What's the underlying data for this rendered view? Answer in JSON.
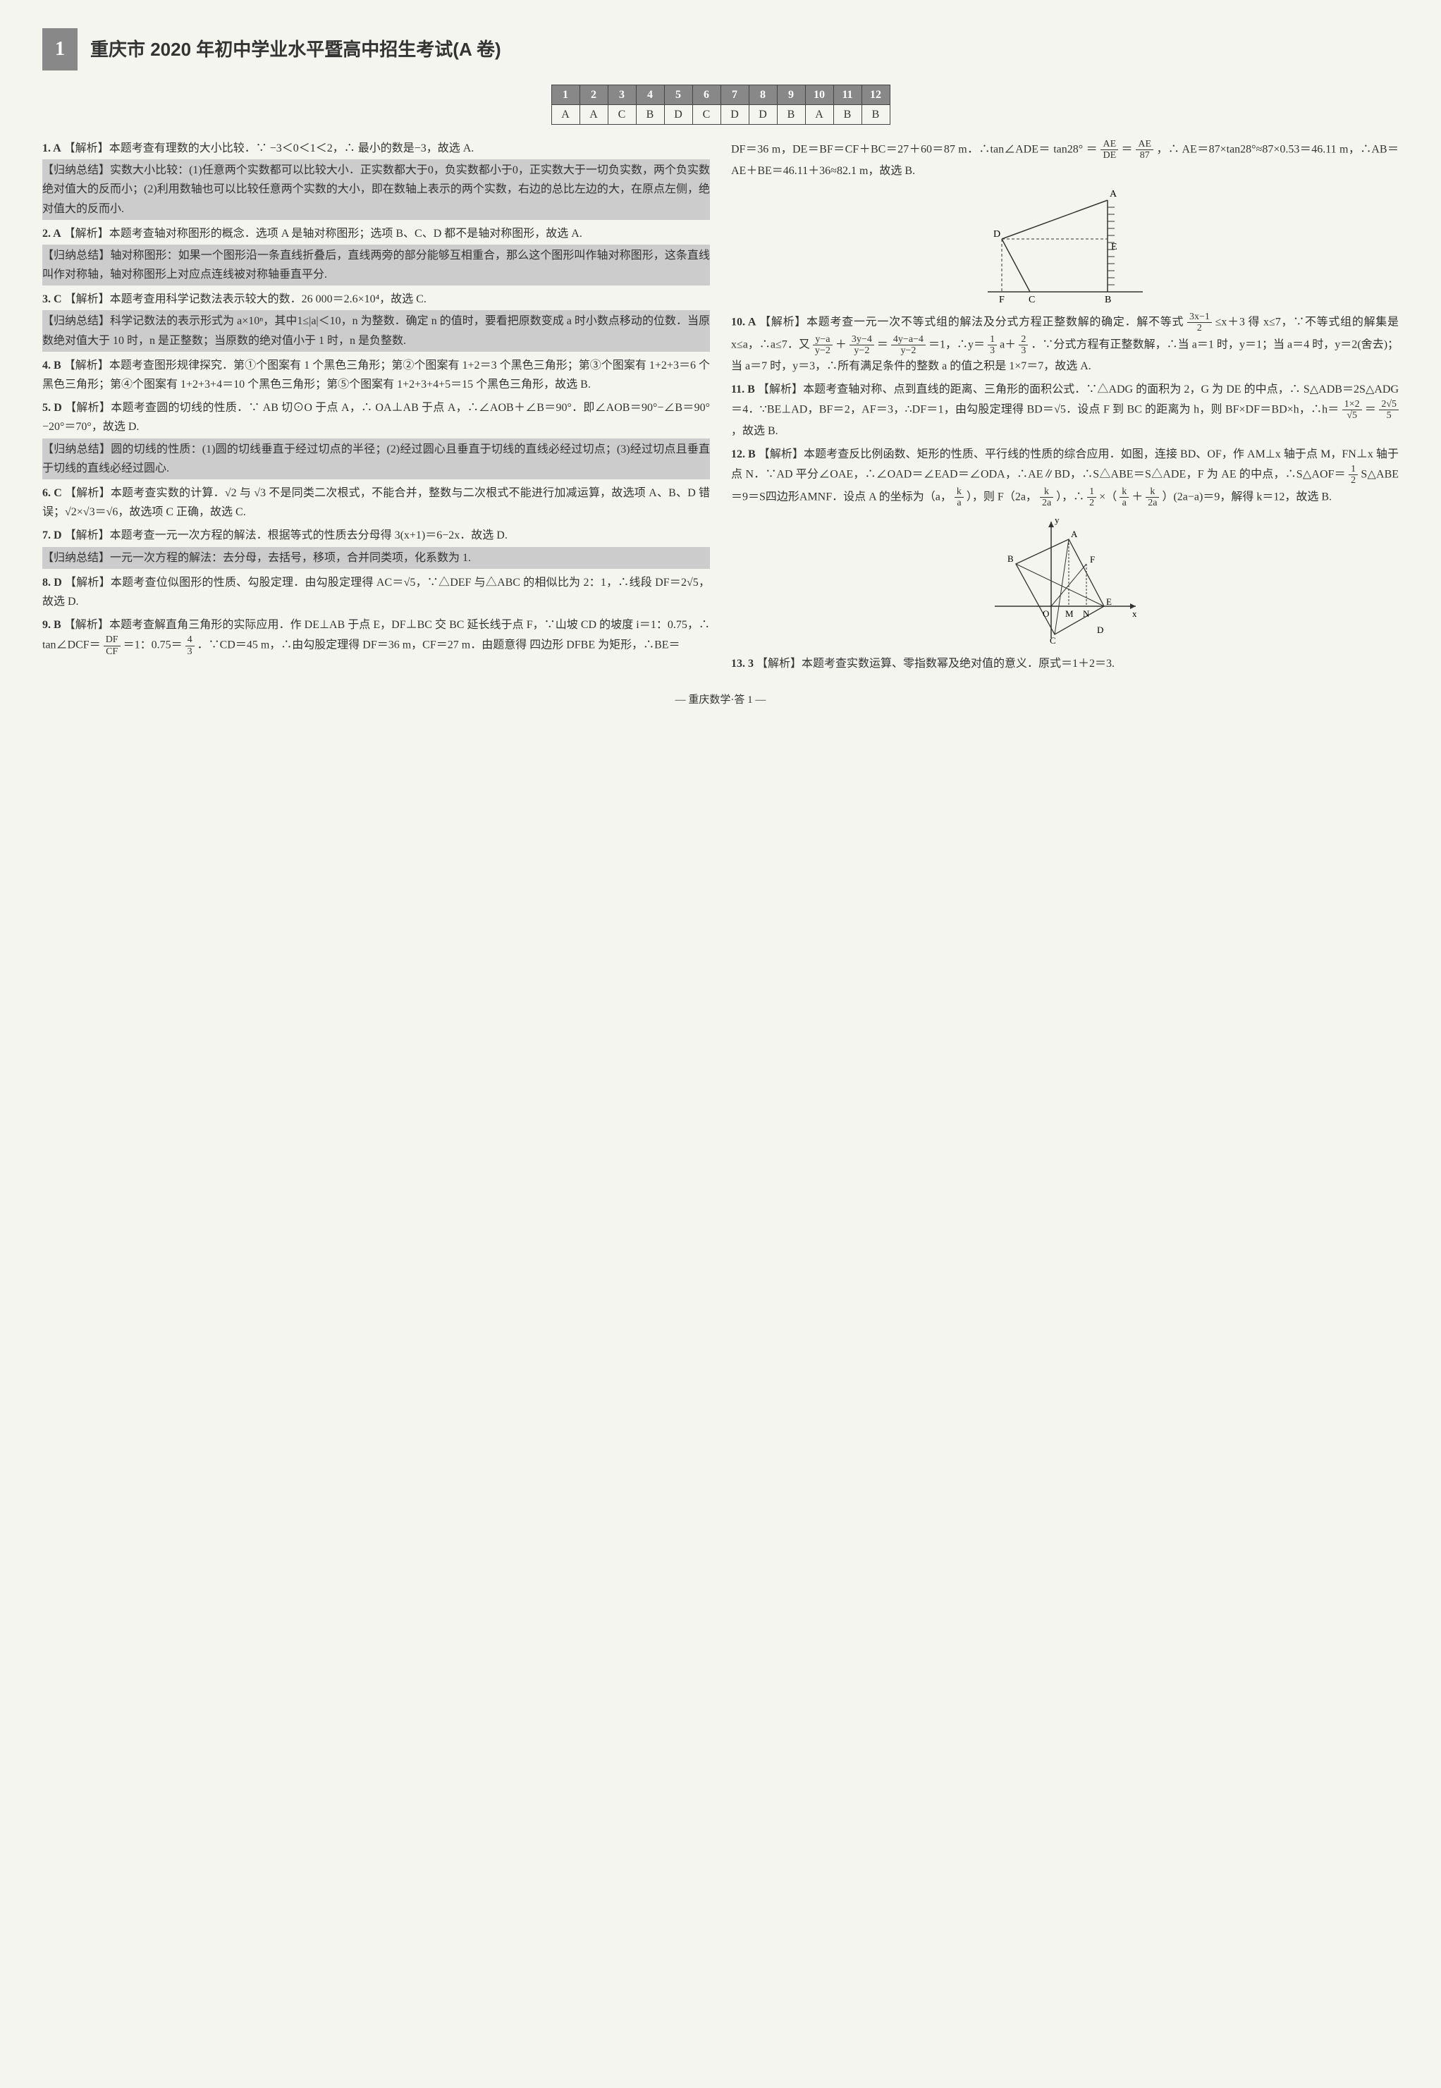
{
  "header": {
    "number": "1",
    "title": "重庆市 2020 年初中学业水平暨高中招生考试(A 卷)"
  },
  "answerTable": {
    "headers": [
      "1",
      "2",
      "3",
      "4",
      "5",
      "6",
      "7",
      "8",
      "9",
      "10",
      "11",
      "12"
    ],
    "answers": [
      "A",
      "A",
      "C",
      "B",
      "D",
      "C",
      "D",
      "D",
      "B",
      "A",
      "B",
      "B"
    ]
  },
  "leftCol": {
    "q1": {
      "num": "1. A",
      "label": "【解析】",
      "text": "本题考查有理数的大小比较．∵ −3＜0＜1＜2，∴ 最小的数是−3，故选 A.",
      "summaryLabel": "【归纳总结】",
      "summary": "实数大小比较：(1)任意两个实数都可以比较大小．正实数都大于0，负实数都小于0，正实数大于一切负实数，两个负实数绝对值大的反而小；(2)利用数轴也可以比较任意两个实数的大小，即在数轴上表示的两个实数，右边的总比左边的大，在原点左侧，绝对值大的反而小."
    },
    "q2": {
      "num": "2. A",
      "label": "【解析】",
      "text": "本题考查轴对称图形的概念．选项 A 是轴对称图形；选项 B、C、D 都不是轴对称图形，故选 A.",
      "summaryLabel": "【归纳总结】",
      "summary": "轴对称图形：如果一个图形沿一条直线折叠后，直线两旁的部分能够互相重合，那么这个图形叫作轴对称图形，这条直线叫作对称轴，轴对称图形上对应点连线被对称轴垂直平分."
    },
    "q3": {
      "num": "3. C",
      "label": "【解析】",
      "text": "本题考查用科学记数法表示较大的数．26 000＝2.6×10⁴，故选 C.",
      "summaryLabel": "【归纳总结】",
      "summary": "科学记数法的表示形式为 a×10ⁿ，其中1≤|a|＜10，n 为整数．确定 n 的值时，要看把原数变成 a 时小数点移动的位数．当原数绝对值大于 10 时，n 是正整数；当原数的绝对值小于 1 时，n 是负整数."
    },
    "q4": {
      "num": "4. B",
      "label": "【解析】",
      "text": "本题考查图形规律探究．第①个图案有 1 个黑色三角形；第②个图案有 1+2＝3 个黑色三角形；第③个图案有 1+2+3＝6 个黑色三角形；第④个图案有 1+2+3+4＝10 个黑色三角形；第⑤个图案有 1+2+3+4+5＝15 个黑色三角形，故选 B."
    },
    "q5": {
      "num": "5. D",
      "label": "【解析】",
      "text": "本题考查圆的切线的性质．∵ AB 切⊙O 于点 A，∴ OA⊥AB 于点 A，∴∠AOB＋∠B＝90°．即∠AOB＝90°−∠B＝90°−20°＝70°，故选 D.",
      "summaryLabel": "【归纳总结】",
      "summary": "圆的切线的性质：(1)圆的切线垂直于经过切点的半径；(2)经过圆心且垂直于切线的直线必经过切点；(3)经过切点且垂直于切线的直线必经过圆心."
    },
    "q6": {
      "num": "6. C",
      "label": "【解析】",
      "text": "本题考查实数的计算．√2 与 √3 不是同类二次根式，不能合并，整数与二次根式不能进行加减运算，故选项 A、B、D 错误；√2×√3＝√6，故选项 C 正确，故选 C."
    },
    "q7": {
      "num": "7. D",
      "label": "【解析】",
      "text": "本题考查一元一次方程的解法．根据等式的性质去分母得 3(x+1)＝6−2x．故选 D.",
      "summaryLabel": "【归纳总结】",
      "summary": "一元一次方程的解法：去分母，去括号，移项，合并同类项，化系数为 1."
    },
    "q8": {
      "num": "8. D",
      "label": "【解析】",
      "text": "本题考查位似图形的性质、勾股定理．由勾股定理得 AC＝√5，∵△DEF 与△ABC 的相似比为 2：1，∴线段 DF＝2√5，故选 D."
    },
    "q9": {
      "num": "9. B",
      "label": "【解析】",
      "text1": "本题考查解直角三角形的实际应用．作 DE⊥AB 于点 E，DF⊥BC 交 BC 延长线于点 F，∵山坡 CD 的坡度 i＝1：0.75，∴ tan∠DCF＝",
      "fracTop1": "DF",
      "fracBot1": "CF",
      "text2": "＝1：0.75＝",
      "fracTop2": "4",
      "fracBot2": "3",
      "text3": "．∵CD＝45 m，∴由勾股定理得 DF＝36 m，CF＝27 m．由题意得 四边形 DFBE 为矩形，∴BE＝"
    }
  },
  "rightCol": {
    "q9cont": {
      "text": "DF＝36 m，DE＝BF＝CF＋BC＝27＋60＝87 m．∴tan∠ADE＝ tan28° ＝",
      "fracTop1": "AE",
      "fracBot1": "DE",
      "mid1": "＝",
      "fracTop2": "AE",
      "fracBot2": "87",
      "text2": "，∴ AE＝87×tan28°≈87×0.53＝46.11 m，∴AB＝AE＋BE＝46.11＋36≈82.1 m，故选 B."
    },
    "diagram1": {
      "labels": {
        "A": "A",
        "D": "D",
        "E": "E",
        "F": "F",
        "C": "C",
        "B": "B"
      }
    },
    "q10": {
      "num": "10. A",
      "label": "【解析】",
      "text1": "本题考查一元一次不等式组的解法及分式方程正整数解的确定．解不等式",
      "fracTop1": "3x−1",
      "fracBot1": "2",
      "text2": "≤x＋3 得 x≤7，∵不等式组的解集是 x≤a，∴a≤7．又",
      "fracTop2": "y−a",
      "fracBot2": "y−2",
      "text3": "＋",
      "fracTop3": "3y−4",
      "fracBot3": "y−2",
      "text4": "＝",
      "fracTop4": "4y−a−4",
      "fracBot4": "y−2",
      "text5": "＝1，∴y＝",
      "fracTop5": "1",
      "fracBot5": "3",
      "text6": "a＋",
      "fracTop6": "2",
      "fracBot6": "3",
      "text7": "．∵分式方程有正整数解，∴当 a＝1 时，y＝1；当 a＝4 时，y＝2(舍去)；当 a＝7 时，y＝3，∴所有满足条件的整数 a 的值之积是 1×7＝7，故选 A."
    },
    "q11": {
      "num": "11. B",
      "label": "【解析】",
      "text1": "本题考查轴对称、点到直线的距离、三角形的面积公式．∵△ADG 的面积为 2，G 为 DE 的中点，∴ S△ADB＝2S△ADG＝4．∵BE⊥AD，BF＝2，AF＝3，∴DF＝1，由勾股定理得 BD＝√5．设点 F 到 BC 的距离为 h，则 BF×DF＝BD×h，∴h＝",
      "fracTop1": "1×2",
      "fracBot1": "√5",
      "text2": "＝",
      "fracTop2": "2√5",
      "fracBot2": "5",
      "text3": "，故选 B."
    },
    "q12": {
      "num": "12. B",
      "label": "【解析】",
      "text1": "本题考查反比例函数、矩形的性质、平行线的性质的综合应用．如图，连接 BD、OF，作 AM⊥x 轴于点 M，FN⊥x 轴于点 N．∵AD 平分∠OAE，∴∠OAD＝∠EAD＝∠ODA，∴AE∥BD，∴S△ABE＝S△ADE，F 为 AE 的中点，∴S△AOF＝",
      "fracTop1": "1",
      "fracBot1": "2",
      "text2": "S△ABE＝9＝S四边形AMNF．设点 A 的坐标为（a，",
      "fracTop2": "k",
      "fracBot2": "a",
      "text3": "），则 F（2a，",
      "fracTop3": "k",
      "fracBot3": "2a",
      "text4": "），∴",
      "fracTop4": "1",
      "fracBot4": "2",
      "text5": "×（",
      "fracTop5": "k",
      "fracBot5": "a",
      "text6": "＋",
      "fracTop6": "k",
      "fracBot6": "2a",
      "text7": "）(2a−a)＝9，解得 k＝12，故选 B."
    },
    "diagram2": {
      "labels": {
        "y": "y",
        "x": "x",
        "A": "A",
        "B": "B",
        "C": "C",
        "D": "D",
        "E": "E",
        "F": "F",
        "O": "O",
        "M": "M",
        "N": "N"
      }
    },
    "q13": {
      "num": "13. 3",
      "label": "【解析】",
      "text": "本题考查实数运算、零指数幂及绝对值的意义．原式＝1＋2＝3."
    }
  },
  "footer": "— 重庆数学·答 1 —"
}
